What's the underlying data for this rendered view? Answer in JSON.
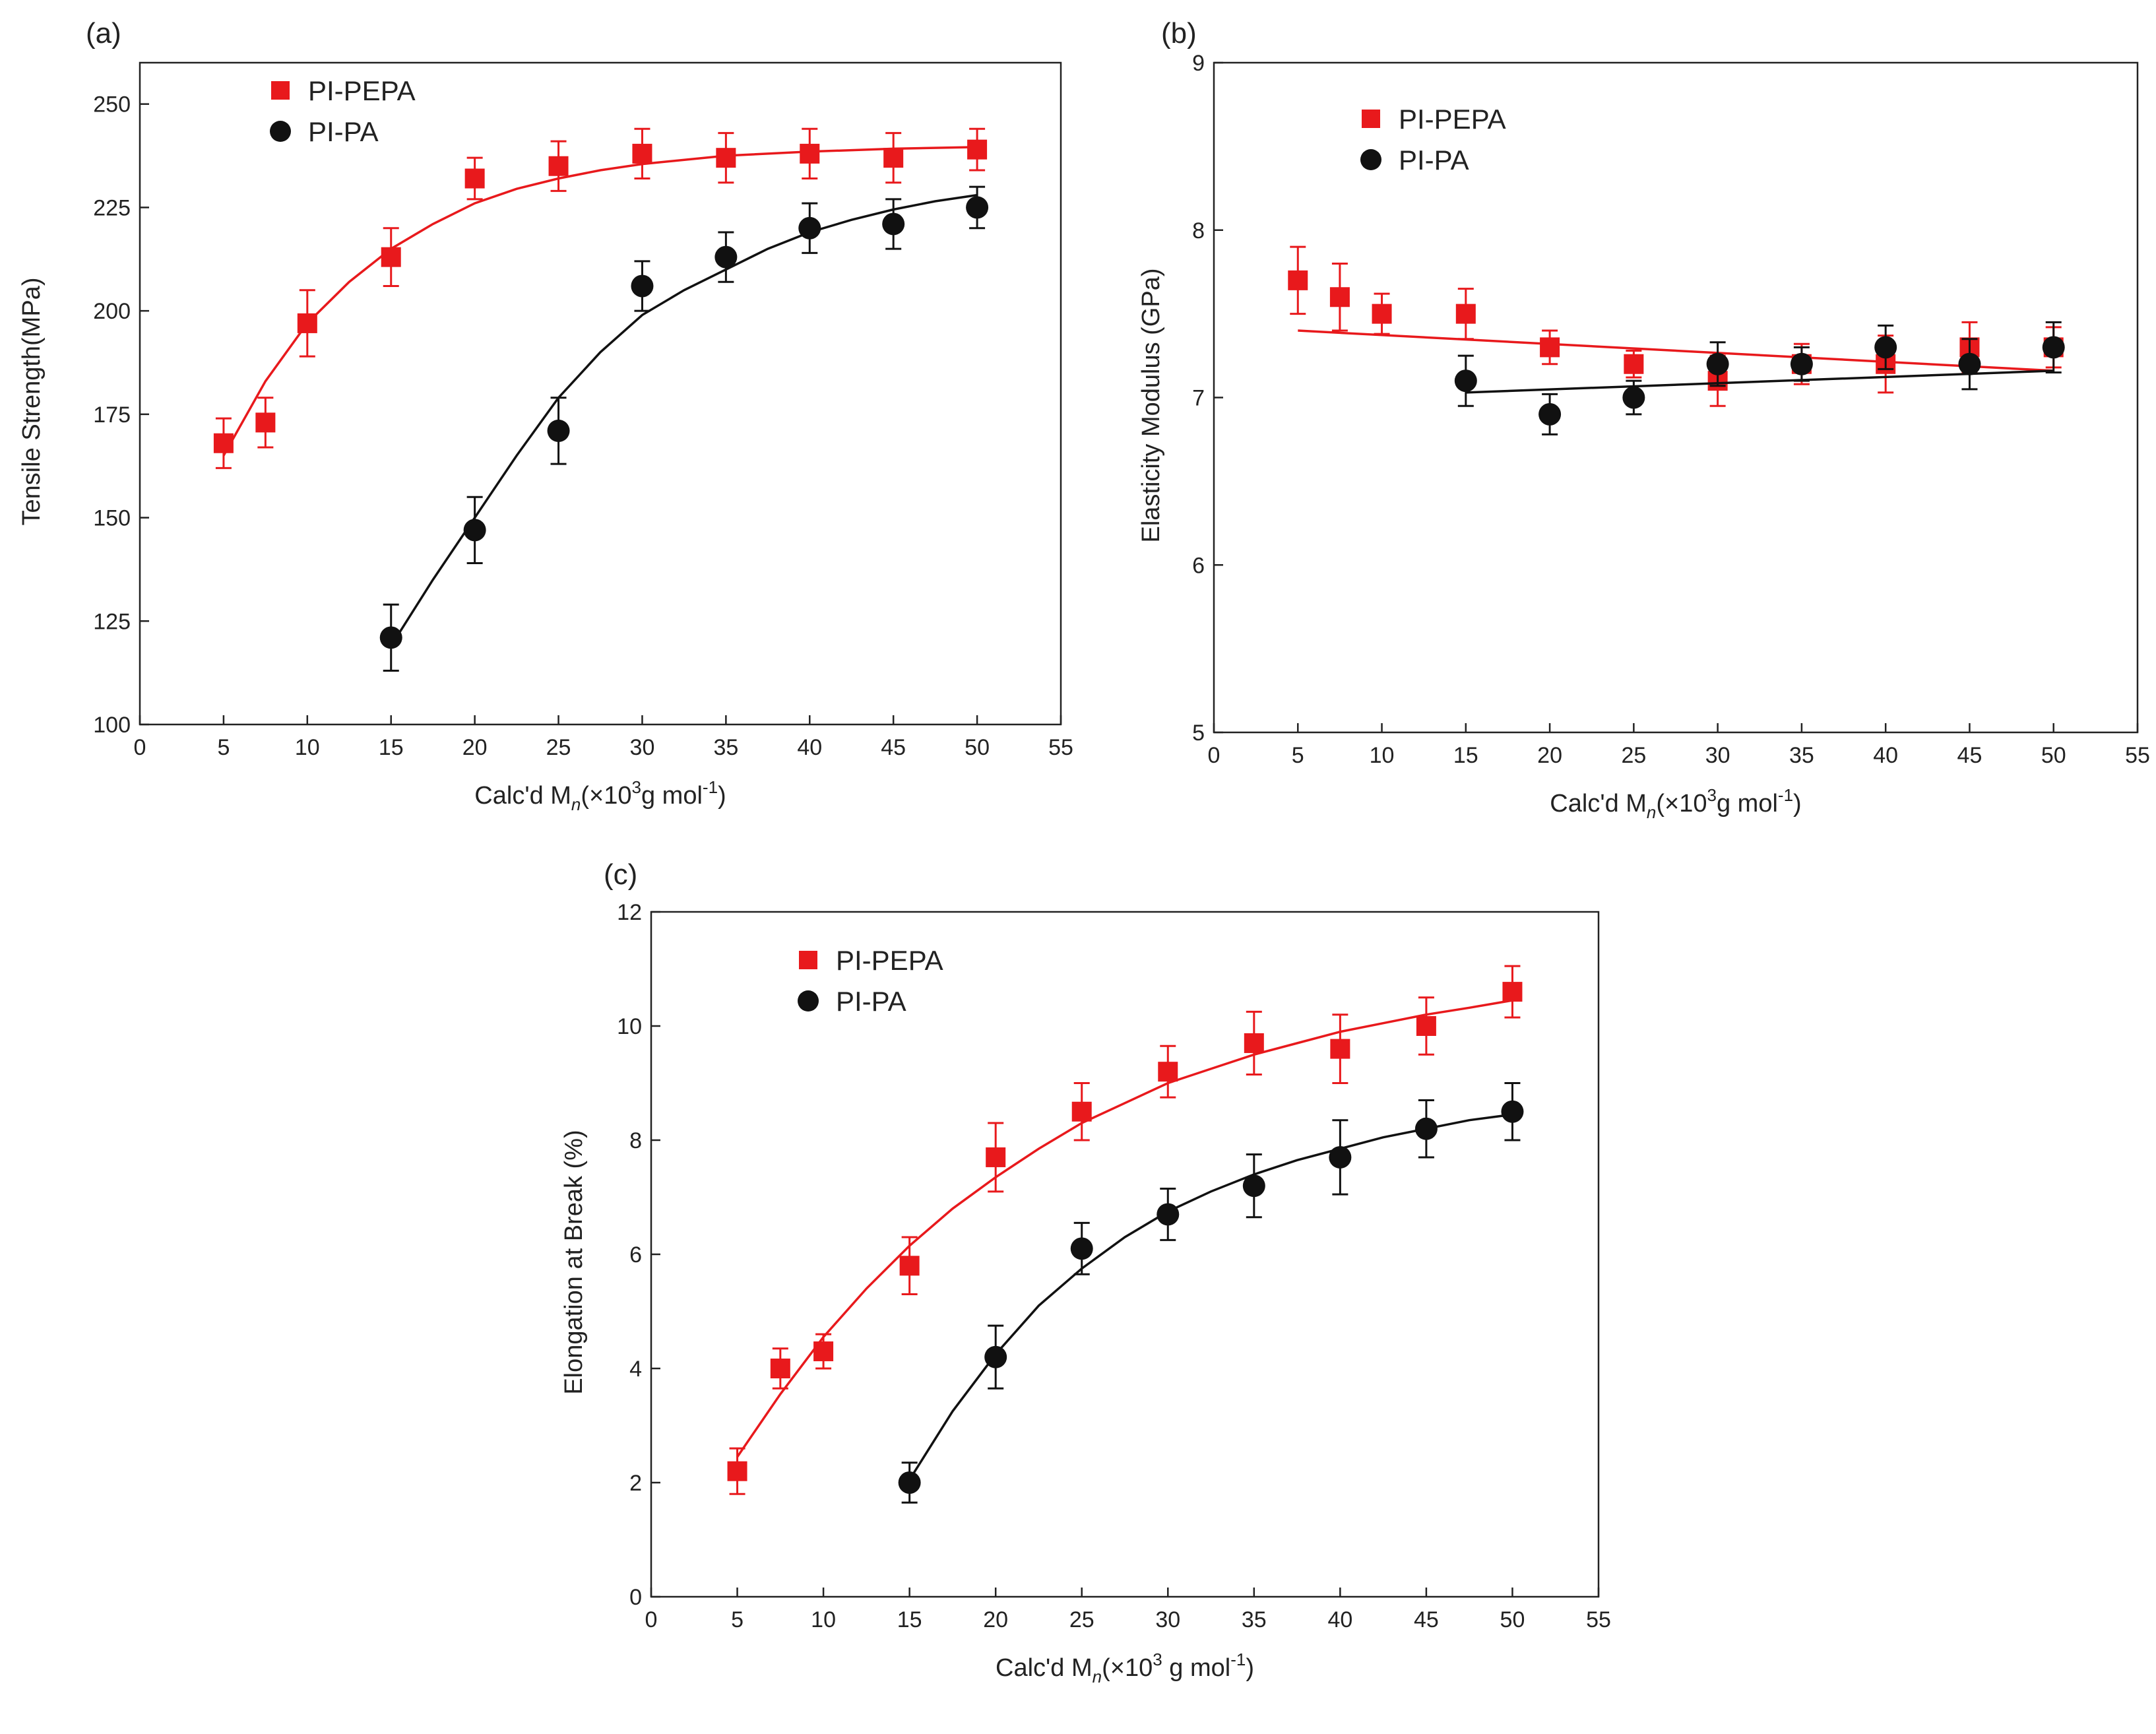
{
  "chart_data": [
    {
      "type": "scatter",
      "panel_label": "(a)",
      "xlabel": "Calc'd M",
      "xlabel_sub": "n",
      "xlabel_paren": "(×10",
      "xlabel_sup": "3",
      "xlabel_tail": "g mol",
      "xlabel_tail_sup": "-1",
      "xlabel_close": ")",
      "ylabel": "Tensile Strength(MPa)",
      "xlim": [
        0,
        55
      ],
      "ylim": [
        100,
        260
      ],
      "xticks": [
        0,
        5,
        10,
        15,
        20,
        25,
        30,
        35,
        40,
        45,
        50,
        55
      ],
      "yticks": [
        100,
        125,
        150,
        175,
        200,
        225,
        250
      ],
      "legend_position": "top-left",
      "series": [
        {
          "name": "PI-PEPA",
          "color": "#e8191c",
          "marker": "square",
          "x": [
            5,
            7.5,
            10,
            15,
            20,
            25,
            30,
            35,
            40,
            45,
            50
          ],
          "y": [
            168,
            173,
            197,
            213,
            232,
            235,
            238,
            237,
            238,
            237,
            239
          ],
          "err": [
            6,
            6,
            8,
            7,
            5,
            6,
            6,
            6,
            6,
            6,
            5
          ],
          "fit_x": [
            5,
            7.5,
            10,
            12.5,
            15,
            17.5,
            20,
            22.5,
            25,
            27.5,
            30,
            35,
            40,
            45,
            50
          ],
          "fit_y": [
            165,
            183,
            197,
            207,
            215,
            221,
            226,
            229.5,
            232,
            234,
            235.5,
            237.5,
            238.5,
            239.2,
            239.6
          ]
        },
        {
          "name": "PI-PA",
          "color": "#111111",
          "marker": "circle",
          "x": [
            15,
            20,
            25,
            30,
            35,
            40,
            45,
            50
          ],
          "y": [
            121,
            147,
            171,
            206,
            213,
            220,
            221,
            225
          ],
          "err": [
            8,
            8,
            8,
            6,
            6,
            6,
            6,
            5
          ],
          "fit_x": [
            15,
            17.5,
            20,
            22.5,
            25,
            27.5,
            30,
            32.5,
            35,
            37.5,
            40,
            42.5,
            45,
            47.5,
            50
          ],
          "fit_y": [
            119,
            135,
            150,
            165,
            179,
            190,
            199,
            205,
            210,
            215,
            219,
            222,
            224.5,
            226.5,
            228
          ]
        }
      ]
    },
    {
      "type": "scatter",
      "panel_label": "(b)",
      "xlabel": "Calc'd M",
      "xlabel_sub": "n",
      "xlabel_paren": "(×10",
      "xlabel_sup": "3",
      "xlabel_tail": "g mol",
      "xlabel_tail_sup": "-1",
      "xlabel_close": ")",
      "ylabel": "Elasticity Modulus (GPa)",
      "xlim": [
        0,
        55
      ],
      "ylim": [
        5,
        9
      ],
      "xticks": [
        0,
        5,
        10,
        15,
        20,
        25,
        30,
        35,
        40,
        45,
        50,
        55
      ],
      "yticks": [
        5,
        6,
        7,
        8,
        9
      ],
      "legend_position": "top-left",
      "series": [
        {
          "name": "PI-PEPA",
          "color": "#e8191c",
          "marker": "square",
          "x": [
            5,
            7.5,
            10,
            15,
            20,
            25,
            30,
            35,
            40,
            45,
            50
          ],
          "y": [
            7.7,
            7.6,
            7.5,
            7.5,
            7.3,
            7.2,
            7.1,
            7.2,
            7.2,
            7.3,
            7.3
          ],
          "err": [
            0.2,
            0.2,
            0.12,
            0.15,
            0.1,
            0.08,
            0.15,
            0.12,
            0.17,
            0.15,
            0.12
          ],
          "fit_x": [
            5,
            50
          ],
          "fit_y": [
            7.4,
            7.16
          ]
        },
        {
          "name": "PI-PA",
          "color": "#111111",
          "marker": "circle",
          "x": [
            15,
            20,
            25,
            30,
            35,
            40,
            45,
            50
          ],
          "y": [
            7.1,
            6.9,
            7.0,
            7.2,
            7.2,
            7.3,
            7.2,
            7.3
          ],
          "err": [
            0.15,
            0.12,
            0.1,
            0.13,
            0.1,
            0.13,
            0.15,
            0.15
          ],
          "fit_x": [
            15,
            50
          ],
          "fit_y": [
            7.03,
            7.16
          ]
        }
      ]
    },
    {
      "type": "scatter",
      "panel_label": "(c)",
      "xlabel": "Calc'd M",
      "xlabel_sub": "n",
      "xlabel_paren": "(×10",
      "xlabel_sup": "3",
      "xlabel_tail": " g mol",
      "xlabel_tail_sup": "-1",
      "xlabel_close": ")",
      "ylabel": "Elongation at Break (%)",
      "xlim": [
        0,
        55
      ],
      "ylim": [
        0,
        12
      ],
      "xticks": [
        0,
        5,
        10,
        15,
        20,
        25,
        30,
        35,
        40,
        45,
        50,
        55
      ],
      "yticks": [
        0,
        2,
        4,
        6,
        8,
        10,
        12
      ],
      "legend_position": "top-left",
      "series": [
        {
          "name": "PI-PEPA",
          "color": "#e8191c",
          "marker": "square",
          "x": [
            5,
            7.5,
            10,
            15,
            20,
            25,
            30,
            35,
            40,
            45,
            50
          ],
          "y": [
            2.2,
            4.0,
            4.3,
            5.8,
            7.7,
            8.5,
            9.2,
            9.7,
            9.6,
            10.0,
            10.6
          ],
          "err": [
            0.4,
            0.35,
            0.3,
            0.5,
            0.6,
            0.5,
            0.45,
            0.55,
            0.6,
            0.5,
            0.45
          ],
          "fit_x": [
            5,
            7.5,
            10,
            12.5,
            15,
            17.5,
            20,
            22.5,
            25,
            27.5,
            30,
            32.5,
            35,
            37.5,
            40,
            42.5,
            45,
            47.5,
            50
          ],
          "fit_y": [
            2.45,
            3.55,
            4.55,
            5.4,
            6.15,
            6.8,
            7.35,
            7.85,
            8.3,
            8.65,
            9.0,
            9.25,
            9.5,
            9.7,
            9.9,
            10.05,
            10.2,
            10.32,
            10.45
          ]
        },
        {
          "name": "PI-PA",
          "color": "#111111",
          "marker": "circle",
          "x": [
            15,
            20,
            25,
            30,
            35,
            40,
            45,
            50
          ],
          "y": [
            2.0,
            4.2,
            6.1,
            6.7,
            7.2,
            7.7,
            8.2,
            8.5
          ],
          "err": [
            0.35,
            0.55,
            0.45,
            0.45,
            0.55,
            0.65,
            0.5,
            0.5
          ],
          "fit_x": [
            15,
            17.5,
            20,
            22.5,
            25,
            27.5,
            30,
            32.5,
            35,
            37.5,
            40,
            42.5,
            45,
            47.5,
            50
          ],
          "fit_y": [
            2.05,
            3.25,
            4.25,
            5.1,
            5.75,
            6.3,
            6.75,
            7.1,
            7.4,
            7.65,
            7.85,
            8.05,
            8.2,
            8.35,
            8.45
          ]
        }
      ]
    }
  ]
}
